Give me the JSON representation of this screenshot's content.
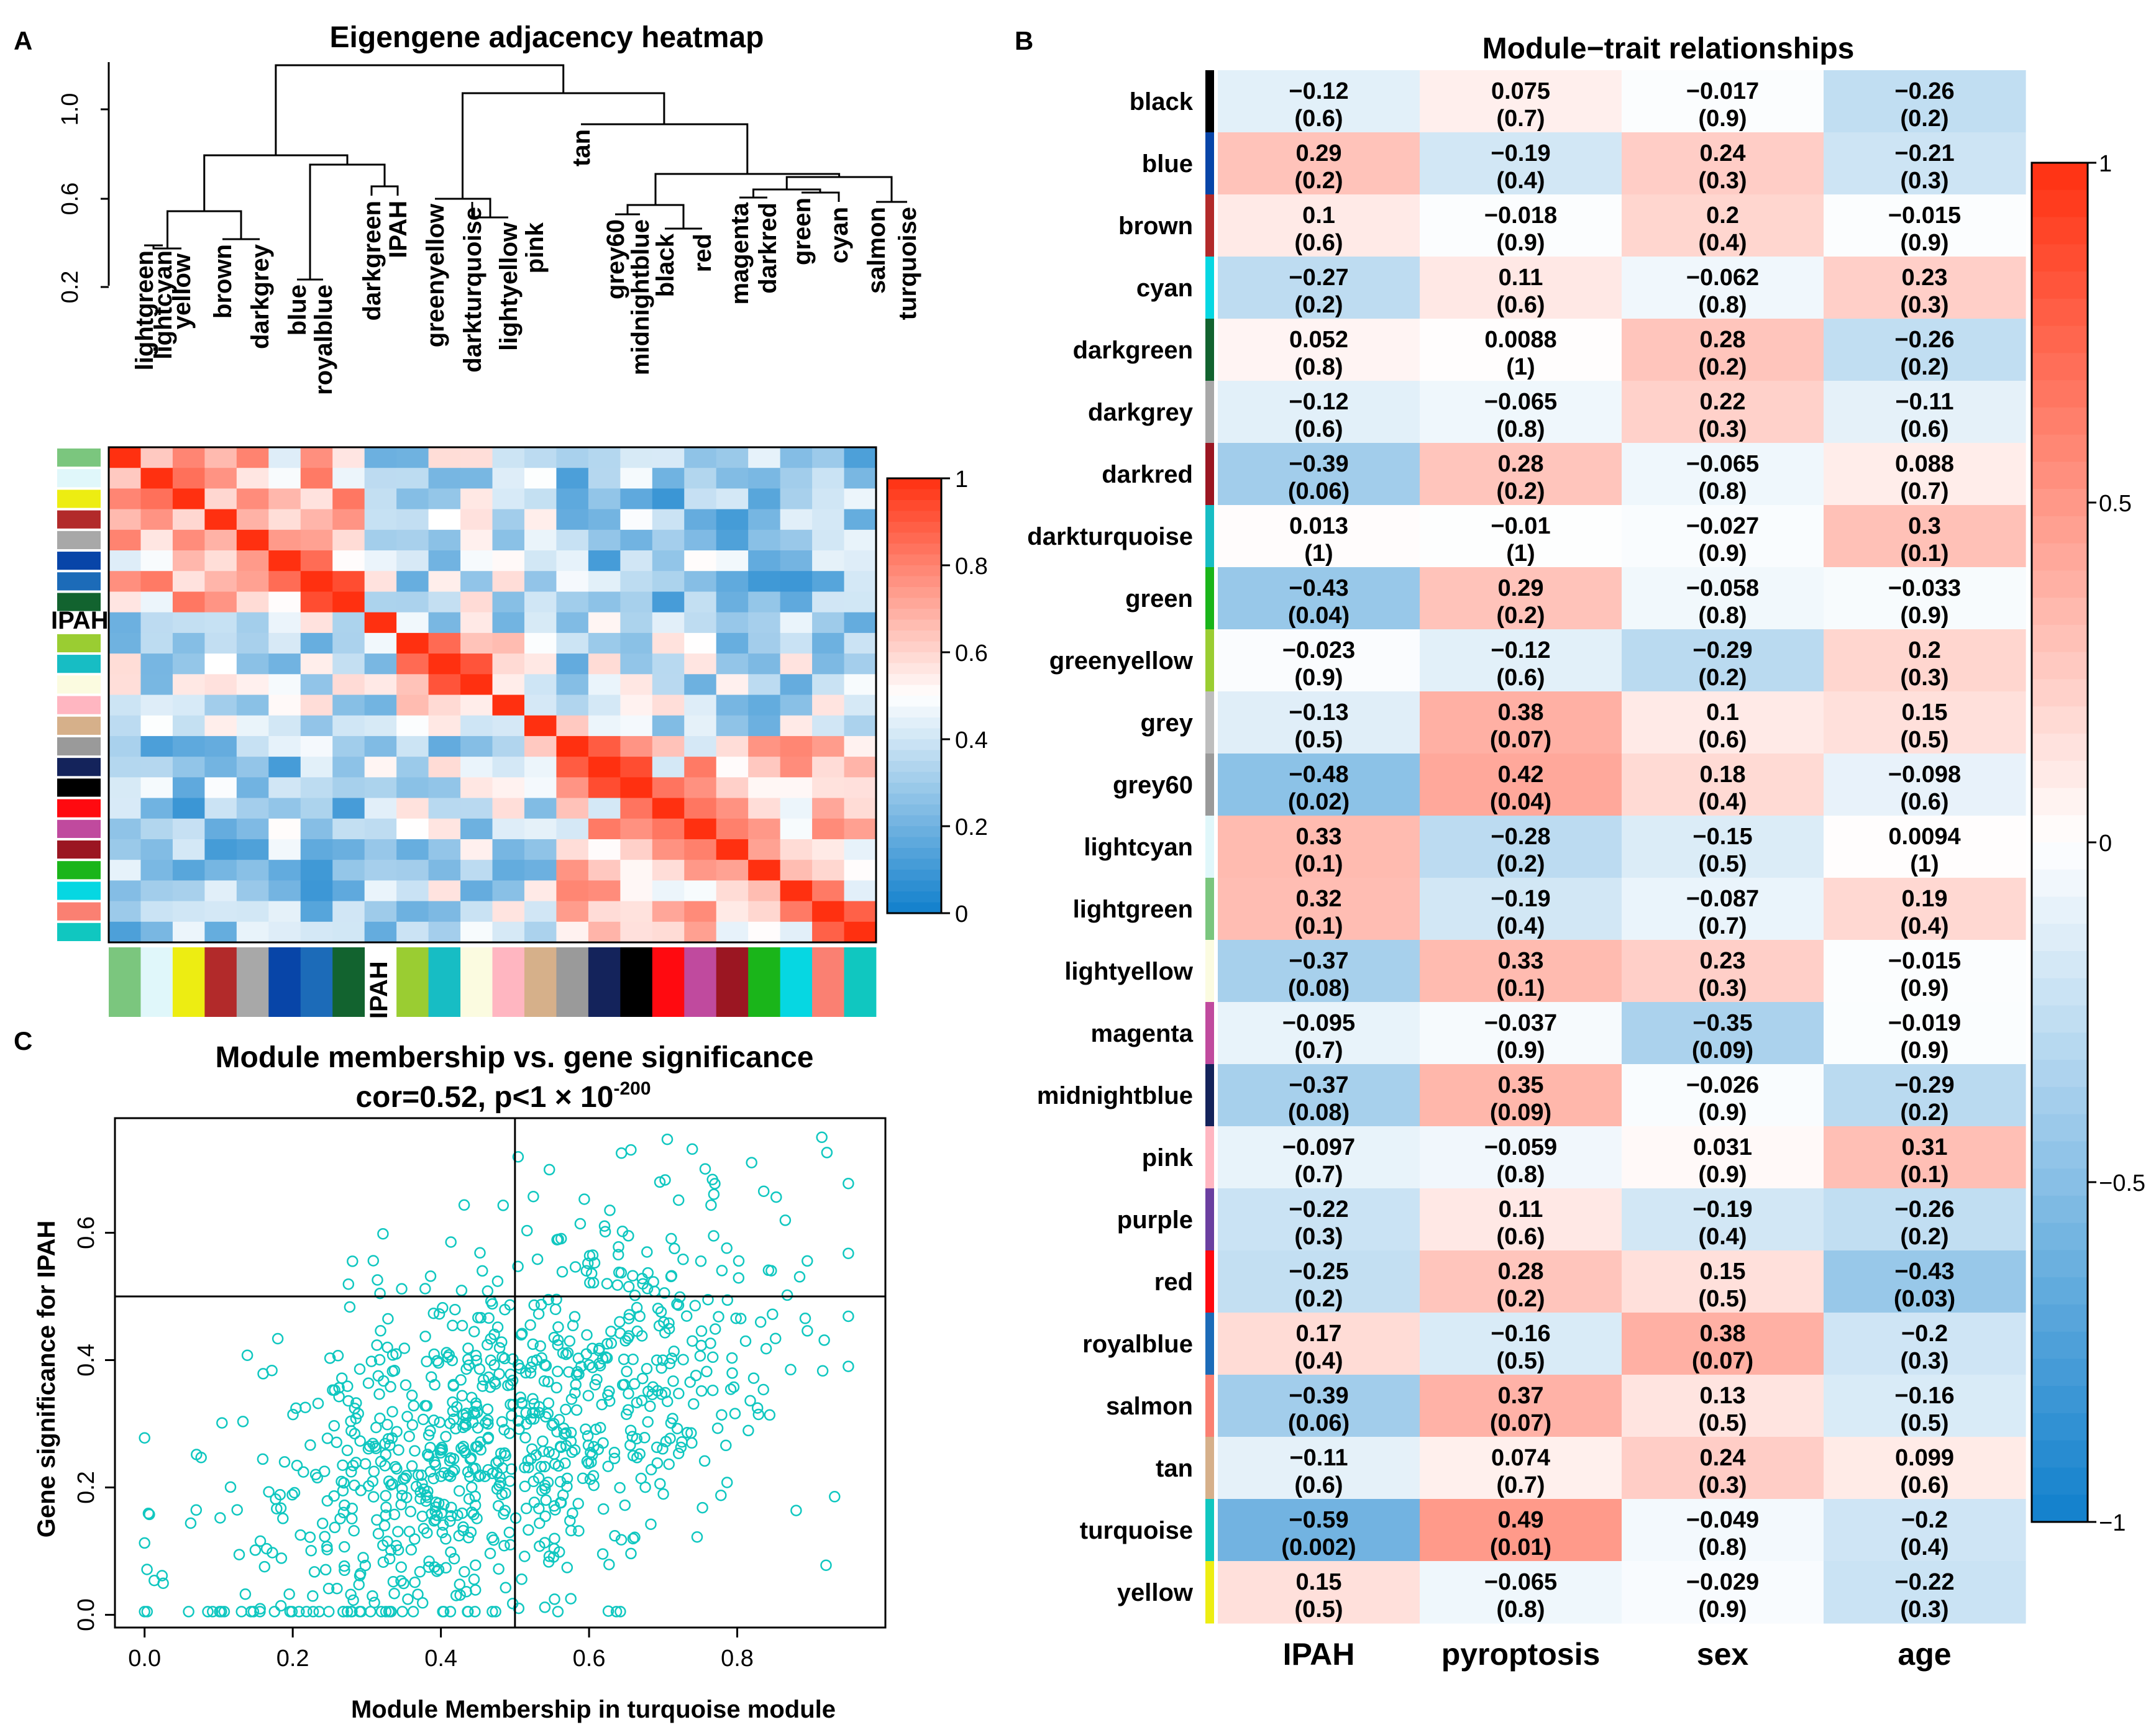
{
  "panels": {
    "A": {
      "label": "A",
      "title": "Eigengene adjacency heatmap",
      "dendro_ticks": [
        "0.2",
        "0.6",
        "1.0"
      ],
      "leaves": [
        "lightgreen",
        "lightcyan",
        "yellow",
        "brown",
        "darkgrey",
        "blue",
        "royalblue",
        "darkgreen",
        "IPAH",
        "greenyellow",
        "darkturquoise",
        "lightyellow",
        "pink",
        "tan",
        "grey60",
        "midnightblue",
        "black",
        "red",
        "magenta",
        "darkred",
        "green",
        "cyan",
        "salmon",
        "turquoise"
      ],
      "leaf_colors": [
        "#7bc67e",
        "#e0f7fa",
        "#eded12",
        "#b22a2a",
        "#a8a8a8",
        "#0845a8",
        "#1c6bb8",
        "#12632f",
        null,
        "#9acd32",
        "#17bdc4",
        "#fbfbe0",
        "#ffb6c1",
        "#d6b08a",
        "#9a9a9a",
        "#14235b",
        "#000000",
        "#ff0a10",
        "#c04a9e",
        "#9b1622",
        "#1ab51a",
        "#06d7e2",
        "#fa8072",
        "#10c7c0"
      ],
      "legend": {
        "ticks": [
          "0",
          "0.2",
          "0.4",
          "0.6",
          "0.8",
          "1"
        ]
      }
    },
    "B": {
      "label": "B",
      "title": "Module−trait relationships",
      "columns": [
        "IPAH",
        "pyroptosis",
        "sex",
        "age"
      ],
      "legend_ticks": [
        "−1",
        "−0.5",
        "0",
        "0.5",
        "1"
      ],
      "rows": [
        {
          "name": "black",
          "color": "#000000",
          "cells": [
            [
              "−0.12",
              "(0.6)"
            ],
            [
              "0.075",
              "(0.7)"
            ],
            [
              "−0.017",
              "(0.9)"
            ],
            [
              "−0.26",
              "(0.2)"
            ]
          ]
        },
        {
          "name": "blue",
          "color": "#0845a8",
          "cells": [
            [
              "0.29",
              "(0.2)"
            ],
            [
              "−0.19",
              "(0.4)"
            ],
            [
              "0.24",
              "(0.3)"
            ],
            [
              "−0.21",
              "(0.3)"
            ]
          ]
        },
        {
          "name": "brown",
          "color": "#b22a2a",
          "cells": [
            [
              "0.1",
              "(0.6)"
            ],
            [
              "−0.018",
              "(0.9)"
            ],
            [
              "0.2",
              "(0.4)"
            ],
            [
              "−0.015",
              "(0.9)"
            ]
          ]
        },
        {
          "name": "cyan",
          "color": "#06d7e2",
          "cells": [
            [
              "−0.27",
              "(0.2)"
            ],
            [
              "0.11",
              "(0.6)"
            ],
            [
              "−0.062",
              "(0.8)"
            ],
            [
              "0.23",
              "(0.3)"
            ]
          ]
        },
        {
          "name": "darkgreen",
          "color": "#12632f",
          "cells": [
            [
              "0.052",
              "(0.8)"
            ],
            [
              "0.0088",
              "(1)"
            ],
            [
              "0.28",
              "(0.2)"
            ],
            [
              "−0.26",
              "(0.2)"
            ]
          ]
        },
        {
          "name": "darkgrey",
          "color": "#a8a8a8",
          "cells": [
            [
              "−0.12",
              "(0.6)"
            ],
            [
              "−0.065",
              "(0.8)"
            ],
            [
              "0.22",
              "(0.3)"
            ],
            [
              "−0.11",
              "(0.6)"
            ]
          ]
        },
        {
          "name": "darkred",
          "color": "#9b1622",
          "cells": [
            [
              "−0.39",
              "(0.06)"
            ],
            [
              "0.28",
              "(0.2)"
            ],
            [
              "−0.065",
              "(0.8)"
            ],
            [
              "0.088",
              "(0.7)"
            ]
          ]
        },
        {
          "name": "darkturquoise",
          "color": "#17bdc4",
          "cells": [
            [
              "0.013",
              "(1)"
            ],
            [
              "−0.01",
              "(1)"
            ],
            [
              "−0.027",
              "(0.9)"
            ],
            [
              "0.3",
              "(0.1)"
            ]
          ]
        },
        {
          "name": "green",
          "color": "#1ab51a",
          "cells": [
            [
              "−0.43",
              "(0.04)"
            ],
            [
              "0.29",
              "(0.2)"
            ],
            [
              "−0.058",
              "(0.8)"
            ],
            [
              "−0.033",
              "(0.9)"
            ]
          ]
        },
        {
          "name": "greenyellow",
          "color": "#9acd32",
          "cells": [
            [
              "−0.023",
              "(0.9)"
            ],
            [
              "−0.12",
              "(0.6)"
            ],
            [
              "−0.29",
              "(0.2)"
            ],
            [
              "0.2",
              "(0.3)"
            ]
          ]
        },
        {
          "name": "grey",
          "color": "#bebebe",
          "cells": [
            [
              "−0.13",
              "(0.5)"
            ],
            [
              "0.38",
              "(0.07)"
            ],
            [
              "0.1",
              "(0.6)"
            ],
            [
              "0.15",
              "(0.5)"
            ]
          ]
        },
        {
          "name": "grey60",
          "color": "#9a9a9a",
          "cells": [
            [
              "−0.48",
              "(0.02)"
            ],
            [
              "0.42",
              "(0.04)"
            ],
            [
              "0.18",
              "(0.4)"
            ],
            [
              "−0.098",
              "(0.6)"
            ]
          ]
        },
        {
          "name": "lightcyan",
          "color": "#e0f7fa",
          "cells": [
            [
              "0.33",
              "(0.1)"
            ],
            [
              "−0.28",
              "(0.2)"
            ],
            [
              "−0.15",
              "(0.5)"
            ],
            [
              "0.0094",
              "(1)"
            ]
          ]
        },
        {
          "name": "lightgreen",
          "color": "#7bc67e",
          "cells": [
            [
              "0.32",
              "(0.1)"
            ],
            [
              "−0.19",
              "(0.4)"
            ],
            [
              "−0.087",
              "(0.7)"
            ],
            [
              "0.19",
              "(0.4)"
            ]
          ]
        },
        {
          "name": "lightyellow",
          "color": "#fbfbe0",
          "cells": [
            [
              "−0.37",
              "(0.08)"
            ],
            [
              "0.33",
              "(0.1)"
            ],
            [
              "0.23",
              "(0.3)"
            ],
            [
              "−0.015",
              "(0.9)"
            ]
          ]
        },
        {
          "name": "magenta",
          "color": "#c04a9e",
          "cells": [
            [
              "−0.095",
              "(0.7)"
            ],
            [
              "−0.037",
              "(0.9)"
            ],
            [
              "−0.35",
              "(0.09)"
            ],
            [
              "−0.019",
              "(0.9)"
            ]
          ]
        },
        {
          "name": "midnightblue",
          "color": "#14235b",
          "cells": [
            [
              "−0.37",
              "(0.08)"
            ],
            [
              "0.35",
              "(0.09)"
            ],
            [
              "−0.026",
              "(0.9)"
            ],
            [
              "−0.29",
              "(0.2)"
            ]
          ]
        },
        {
          "name": "pink",
          "color": "#ffb6c1",
          "cells": [
            [
              "−0.097",
              "(0.7)"
            ],
            [
              "−0.059",
              "(0.8)"
            ],
            [
              "0.031",
              "(0.9)"
            ],
            [
              "0.31",
              "(0.1)"
            ]
          ]
        },
        {
          "name": "purple",
          "color": "#6b3fa0",
          "cells": [
            [
              "−0.22",
              "(0.3)"
            ],
            [
              "0.11",
              "(0.6)"
            ],
            [
              "−0.19",
              "(0.4)"
            ],
            [
              "−0.26",
              "(0.2)"
            ]
          ]
        },
        {
          "name": "red",
          "color": "#ff0a10",
          "cells": [
            [
              "−0.25",
              "(0.2)"
            ],
            [
              "0.28",
              "(0.2)"
            ],
            [
              "0.15",
              "(0.5)"
            ],
            [
              "−0.43",
              "(0.03)"
            ]
          ]
        },
        {
          "name": "royalblue",
          "color": "#1c6bb8",
          "cells": [
            [
              "0.17",
              "(0.4)"
            ],
            [
              "−0.16",
              "(0.5)"
            ],
            [
              "0.38",
              "(0.07)"
            ],
            [
              "−0.2",
              "(0.3)"
            ]
          ]
        },
        {
          "name": "salmon",
          "color": "#fa8072",
          "cells": [
            [
              "−0.39",
              "(0.06)"
            ],
            [
              "0.37",
              "(0.07)"
            ],
            [
              "0.13",
              "(0.5)"
            ],
            [
              "−0.16",
              "(0.5)"
            ]
          ]
        },
        {
          "name": "tan",
          "color": "#d6b08a",
          "cells": [
            [
              "−0.11",
              "(0.6)"
            ],
            [
              "0.074",
              "(0.7)"
            ],
            [
              "0.24",
              "(0.3)"
            ],
            [
              "0.099",
              "(0.6)"
            ]
          ]
        },
        {
          "name": "turquoise",
          "color": "#10c7c0",
          "cells": [
            [
              "−0.59",
              "(0.002)"
            ],
            [
              "0.49",
              "(0.01)"
            ],
            [
              "−0.049",
              "(0.8)"
            ],
            [
              "−0.2",
              "(0.4)"
            ]
          ]
        },
        {
          "name": "yellow",
          "color": "#eded12",
          "cells": [
            [
              "0.15",
              "(0.5)"
            ],
            [
              "−0.065",
              "(0.8)"
            ],
            [
              "−0.029",
              "(0.9)"
            ],
            [
              "−0.22",
              "(0.3)"
            ]
          ]
        }
      ]
    },
    "C": {
      "label": "C",
      "title": "Module membership vs. gene significance",
      "subtitle_main": "cor=0.52, p<1 × 10",
      "subtitle_sup": "-200",
      "color": "#10c7c0"
    }
  },
  "chart_data": [
    {
      "type": "heatmap",
      "title": "Eigengene adjacency heatmap",
      "scale": [
        0,
        1
      ],
      "legend_ticks": [
        0,
        0.2,
        0.4,
        0.6,
        0.8,
        1
      ],
      "order": [
        "lightgreen",
        "lightcyan",
        "yellow",
        "brown",
        "darkgrey",
        "blue",
        "royalblue",
        "darkgreen",
        "IPAH",
        "greenyellow",
        "darkturquoise",
        "lightyellow",
        "pink",
        "tan",
        "grey60",
        "midnightblue",
        "black",
        "red",
        "magenta",
        "darkred",
        "green",
        "cyan",
        "salmon",
        "turquoise"
      ],
      "note": "approximate adjacency values; diagonal = 1"
    },
    {
      "type": "heatmap",
      "title": "Module−trait relationships",
      "columns": [
        "IPAH",
        "pyroptosis",
        "sex",
        "age"
      ],
      "scale": [
        -1,
        1
      ],
      "note": "cell values (correlation and p-value) are listed in panels.B.rows"
    },
    {
      "type": "scatter",
      "title": "Module membership vs. gene significance",
      "subtitle": "cor=0.52, p<1 × 10^-200",
      "xlabel": "Module Membership in turquoise module",
      "ylabel": "Gene significance for IPAH",
      "xlim": [
        -0.04,
        1.0
      ],
      "ylim": [
        -0.02,
        0.78
      ],
      "xticks": [
        0.0,
        0.2,
        0.4,
        0.6,
        0.8
      ],
      "yticks": [
        0.0,
        0.2,
        0.4,
        0.6
      ],
      "xticklabels": [
        "0.0",
        "0.2",
        "0.4",
        "0.6",
        "0.8"
      ],
      "yticklabels": [
        "0.0",
        "0.2",
        "0.4",
        "0.6"
      ],
      "reference_lines": {
        "x": 0.5,
        "y": 0.5
      },
      "n_points": 900,
      "correlation": 0.52,
      "note": "points are an approximate sample reproducing the shown distribution"
    }
  ]
}
